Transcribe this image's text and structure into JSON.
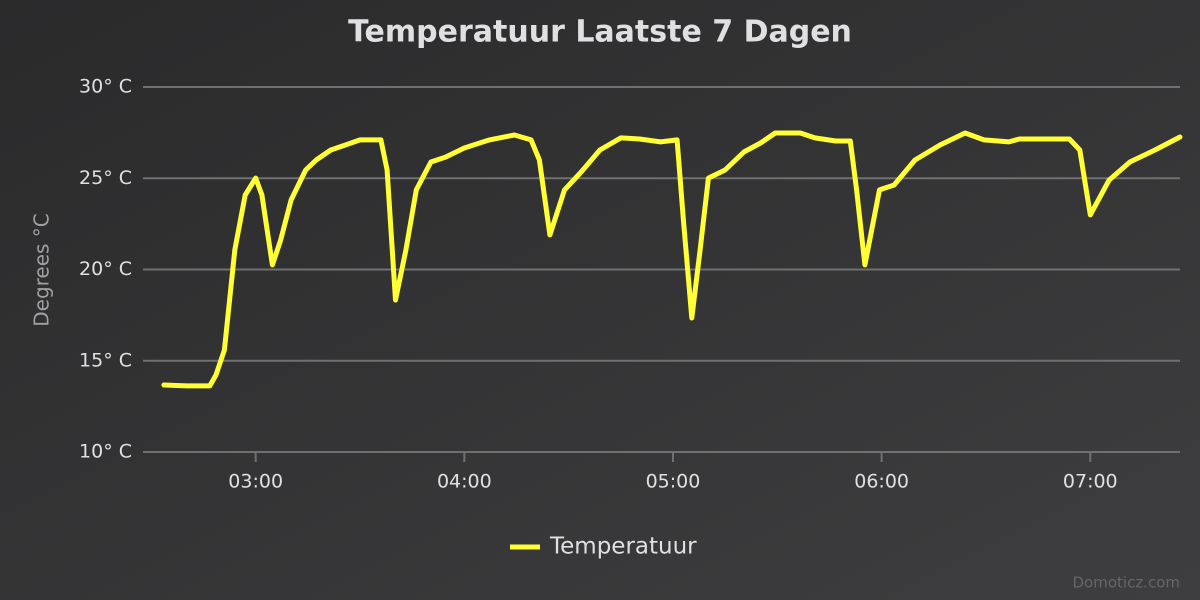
{
  "chart_data": {
    "type": "line",
    "title": "Temperatuur Laatste 7 Dagen",
    "y_label": "Degrees °C",
    "credits": "Domoticz.com",
    "legend": "bottom",
    "grid": true,
    "xlim": [
      2.46,
      7.43
    ],
    "xticks": [
      {
        "value": 3,
        "label": "03:00"
      },
      {
        "value": 4,
        "label": "04:00"
      },
      {
        "value": 5,
        "label": "05:00"
      },
      {
        "value": 6,
        "label": "06:00"
      },
      {
        "value": 7,
        "label": "07:00"
      }
    ],
    "ylim": [
      10,
      30
    ],
    "yticks": [
      {
        "value": 10,
        "label": "10° C"
      },
      {
        "value": 15,
        "label": "15° C"
      },
      {
        "value": 20,
        "label": "20° C"
      },
      {
        "value": 25,
        "label": "25° C"
      },
      {
        "value": 30,
        "label": "30° C"
      }
    ],
    "x": [
      2.56,
      2.67,
      2.78,
      2.81,
      2.85,
      2.9,
      2.95,
      3.0,
      3.03,
      3.08,
      3.12,
      3.17,
      3.24,
      3.29,
      3.36,
      3.43,
      3.5,
      3.6,
      3.63,
      3.67,
      3.72,
      3.77,
      3.84,
      3.91,
      4.0,
      4.12,
      4.24,
      4.32,
      4.36,
      4.41,
      4.48,
      4.56,
      4.65,
      4.75,
      4.84,
      4.94,
      5.02,
      5.05,
      5.09,
      5.13,
      5.17,
      5.25,
      5.34,
      5.42,
      5.49,
      5.61,
      5.68,
      5.78,
      5.85,
      5.88,
      5.92,
      5.99,
      6.06,
      6.16,
      6.28,
      6.4,
      6.49,
      6.61,
      6.66,
      6.9,
      6.95,
      7.0,
      7.09,
      7.19,
      7.31,
      7.43
    ],
    "series": [
      {
        "name": "Temperatuur",
        "color": "#ffff33",
        "values": [
          13.67,
          13.62,
          13.62,
          14.22,
          15.59,
          21.07,
          24.08,
          25.01,
          24.08,
          20.25,
          21.62,
          23.81,
          25.45,
          26.0,
          26.55,
          26.82,
          27.1,
          27.1,
          25.45,
          18.33,
          21.07,
          24.36,
          25.89,
          26.16,
          26.66,
          27.1,
          27.37,
          27.1,
          26.0,
          21.89,
          24.36,
          25.34,
          26.55,
          27.21,
          27.15,
          26.99,
          27.1,
          22.71,
          17.34,
          21.07,
          25.01,
          25.45,
          26.44,
          26.93,
          27.48,
          27.48,
          27.21,
          27.04,
          27.04,
          24.36,
          20.25,
          24.36,
          24.63,
          26.0,
          26.82,
          27.48,
          27.1,
          26.99,
          27.15,
          27.15,
          26.55,
          22.99,
          24.9,
          25.89,
          26.55,
          27.26
        ]
      }
    ]
  }
}
